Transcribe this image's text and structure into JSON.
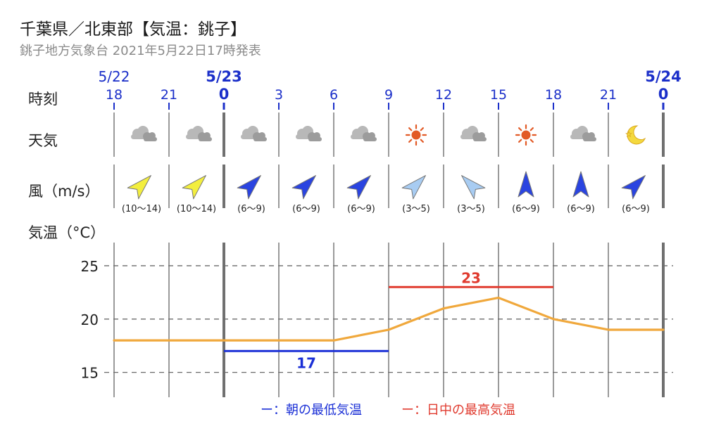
{
  "header": {
    "title": "千葉県／北東部【気温：銚子】",
    "subtitle": "銚子地方気象台 2021年5月22日17時発表"
  },
  "rows": {
    "time_label": "時刻",
    "weather_label": "天気",
    "wind_label": "風（m/s）",
    "temp_label": "気温（°C）"
  },
  "colors": {
    "temp_line": "#F0A83C",
    "min_temp": "#1A2FD6",
    "max_temp": "#E03B2F",
    "axis_blue": "#1B2FC9",
    "sun": "#E25A26",
    "wind_strong": "#F3EE3E",
    "wind_moderate": "#2A44E0",
    "wind_light": "#A8CCF2"
  },
  "chart_data": {
    "type": "line",
    "date_labels": [
      {
        "text": "5/22",
        "at_hour_index": 0,
        "bold": false
      },
      {
        "text": "5/23",
        "at_hour_index": 2,
        "bold": true
      },
      {
        "text": "5/24",
        "at_hour_index": 10,
        "bold": true
      }
    ],
    "hours": [
      "18",
      "21",
      "0",
      "3",
      "6",
      "9",
      "12",
      "15",
      "18",
      "21",
      "0"
    ],
    "bold_hours": [
      2,
      10
    ],
    "weather": [
      "cloudy",
      "cloudy",
      "cloudy",
      "cloudy",
      "cloudy",
      "sunny",
      "cloudy",
      "sunny",
      "cloudy",
      "moon"
    ],
    "wind": [
      {
        "speed": "(10〜14)",
        "direction": "SW",
        "level": "strong"
      },
      {
        "speed": "(10〜14)",
        "direction": "SW",
        "level": "strong"
      },
      {
        "speed": "(6〜9)",
        "direction": "SW",
        "level": "moderate"
      },
      {
        "speed": "(6〜9)",
        "direction": "SW",
        "level": "moderate"
      },
      {
        "speed": "(6〜9)",
        "direction": "SW",
        "level": "moderate"
      },
      {
        "speed": "(3〜5)",
        "direction": "SW",
        "level": "light"
      },
      {
        "speed": "(3〜5)",
        "direction": "SE",
        "level": "light"
      },
      {
        "speed": "(6〜9)",
        "direction": "S",
        "level": "moderate"
      },
      {
        "speed": "(6〜9)",
        "direction": "S",
        "level": "moderate"
      },
      {
        "speed": "(6〜9)",
        "direction": "SW",
        "level": "moderate"
      }
    ],
    "temperature": {
      "x_hour_index": [
        0,
        1,
        2,
        3,
        4,
        5,
        6,
        7,
        8,
        9,
        10
      ],
      "values": [
        18,
        18,
        18,
        18,
        18,
        19,
        21,
        22,
        20,
        19,
        19
      ]
    },
    "min_temp": {
      "value": 17,
      "label": "17",
      "from_hour_index": 2,
      "to_hour_index": 5
    },
    "max_temp": {
      "value": 23,
      "label": "23",
      "from_hour_index": 5,
      "to_hour_index": 8
    },
    "y_ticks": [
      15,
      20,
      25
    ],
    "ylim": [
      13,
      27.5
    ],
    "legend": {
      "placement": "bottom-center",
      "items": [
        {
          "text": "ー：朝の最低気温",
          "color_key": "min_temp"
        },
        {
          "text": "ー：日中の最高気温",
          "color_key": "max_temp"
        }
      ]
    }
  }
}
